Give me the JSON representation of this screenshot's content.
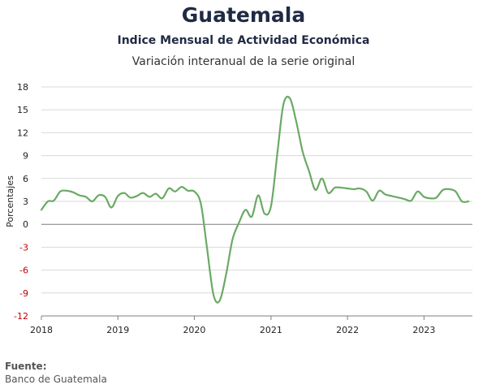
{
  "header": {
    "title": "Guatemala",
    "subtitle": "Indice Mensual de  Actividad Económica",
    "subsubtitle": "Variación interanual de la serie original"
  },
  "footer": {
    "source_label": "Fuente:",
    "source_text": "Banco de Guatemala"
  },
  "chart_data": {
    "type": "line",
    "ylabel": "Porcentajes",
    "xlabel": "",
    "ylim": [
      -12,
      18
    ],
    "yticks": [
      18,
      15,
      12,
      9,
      6,
      3,
      0,
      -3,
      -6,
      -9,
      -12
    ],
    "xticks": [
      "2018",
      "2019",
      "2020",
      "2021",
      "2022",
      "2023"
    ],
    "grid": true,
    "colors": {
      "line": "#6aaa64",
      "negative_tick": "#c00000",
      "grid": "#d9d9d9",
      "zero_line": "#7f7f7f"
    },
    "x": [
      "2018-01",
      "2018-02",
      "2018-03",
      "2018-04",
      "2018-05",
      "2018-06",
      "2018-07",
      "2018-08",
      "2018-09",
      "2018-10",
      "2018-11",
      "2018-12",
      "2019-01",
      "2019-02",
      "2019-03",
      "2019-04",
      "2019-05",
      "2019-06",
      "2019-07",
      "2019-08",
      "2019-09",
      "2019-10",
      "2019-11",
      "2019-12",
      "2020-01",
      "2020-02",
      "2020-03",
      "2020-04",
      "2020-05",
      "2020-06",
      "2020-07",
      "2020-08",
      "2020-09",
      "2020-10",
      "2020-11",
      "2020-12",
      "2021-01",
      "2021-02",
      "2021-03",
      "2021-04",
      "2021-05",
      "2021-06",
      "2021-07",
      "2021-08",
      "2021-09",
      "2021-10",
      "2021-11",
      "2021-12",
      "2022-01",
      "2022-02",
      "2022-03",
      "2022-04",
      "2022-05",
      "2022-06",
      "2022-07",
      "2022-08",
      "2022-09",
      "2022-10",
      "2022-11",
      "2022-12",
      "2023-01",
      "2023-02",
      "2023-03",
      "2023-04",
      "2023-05",
      "2023-06",
      "2023-07",
      "2023-08"
    ],
    "series": [
      {
        "values": [
          1.9,
          3.0,
          3.1,
          4.3,
          4.4,
          4.2,
          3.8,
          3.6,
          3.0,
          3.8,
          3.6,
          2.2,
          3.7,
          4.1,
          3.5,
          3.7,
          4.1,
          3.6,
          4.0,
          3.4,
          4.7,
          4.3,
          4.9,
          4.4,
          4.3,
          2.7,
          -3.0,
          -9.2,
          -10.0,
          -6.5,
          -2.0,
          0.2,
          1.9,
          1.0,
          3.8,
          1.4,
          2.4,
          9.5,
          15.7,
          16.5,
          13.5,
          9.5,
          7.0,
          4.5,
          6.0,
          4.1,
          4.8,
          4.8,
          4.7,
          4.6,
          4.7,
          4.3,
          3.1,
          4.4,
          3.9,
          3.7,
          3.5,
          3.3,
          3.1,
          4.3,
          3.6,
          3.4,
          3.5,
          4.5,
          4.6,
          4.3,
          3.0,
          3.0
        ]
      }
    ]
  }
}
